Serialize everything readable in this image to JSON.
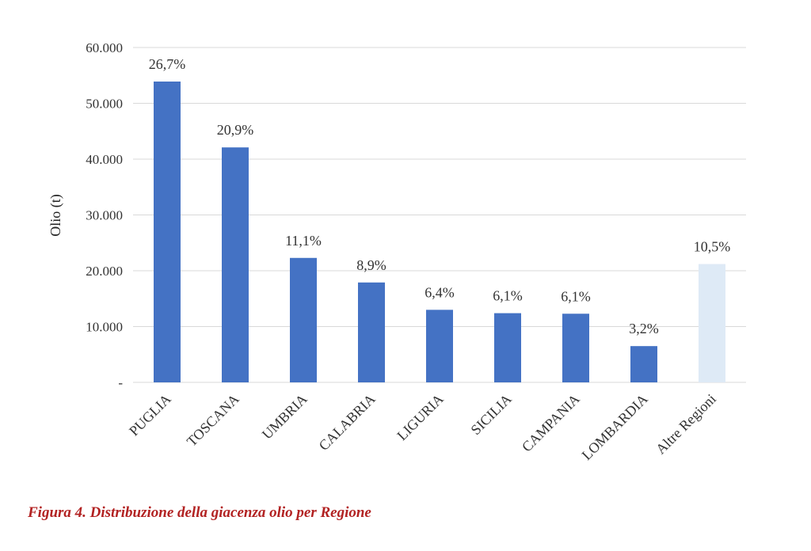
{
  "chart_data": {
    "type": "bar",
    "ylabel": "Olio (t)",
    "ylim": [
      0,
      60000
    ],
    "yticks": [
      {
        "value": 0,
        "label": "-"
      },
      {
        "value": 10000,
        "label": "10.000"
      },
      {
        "value": 20000,
        "label": "20.000"
      },
      {
        "value": 30000,
        "label": "30.000"
      },
      {
        "value": 40000,
        "label": "40.000"
      },
      {
        "value": 50000,
        "label": "50.000"
      },
      {
        "value": 60000,
        "label": "60.000"
      }
    ],
    "grid": true,
    "categories": [
      "PUGLIA",
      "TOSCANA",
      "UMBRIA",
      "CALABRIA",
      "LIGURIA",
      "SICILIA",
      "CAMPANIA",
      "LOMBARDIA",
      "Altre Regioni"
    ],
    "values": [
      53900,
      42100,
      22300,
      17900,
      13000,
      12400,
      12300,
      6500,
      21200
    ],
    "data_labels": [
      "26,7%",
      "20,9%",
      "11,1%",
      "8,9%",
      "6,4%",
      "6,1%",
      "6,1%",
      "3,2%",
      "10,5%"
    ],
    "colors": {
      "bar": "#4472C4",
      "bar_highlight": "#DEEAF6",
      "grid": "#D9D9D9"
    },
    "highlight_index": 8
  },
  "caption": "Figura 4. Distribuzione della giacenza olio per Regione"
}
